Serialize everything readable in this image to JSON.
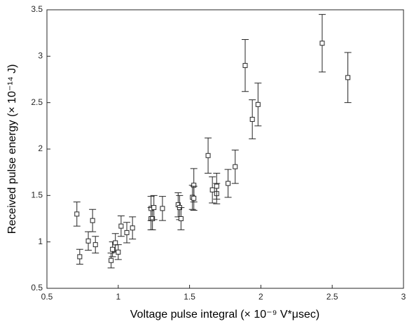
{
  "chart_data": {
    "type": "scatter",
    "xlabel": "Voltage pulse integral (× 10⁻⁹ V*μsec)",
    "ylabel": "Received pulse energy (× 10⁻¹⁴ J)",
    "x": [
      0.71,
      0.73,
      0.79,
      0.82,
      0.84,
      0.95,
      0.96,
      0.98,
      1.0,
      1.02,
      1.06,
      1.1,
      1.23,
      1.23,
      1.24,
      1.25,
      1.31,
      1.42,
      1.43,
      1.44,
      1.52,
      1.53,
      1.53,
      1.63,
      1.66,
      1.69,
      1.69,
      1.77,
      1.82,
      1.89,
      1.94,
      1.98,
      2.43,
      2.61
    ],
    "values": [
      1.3,
      0.84,
      1.01,
      1.23,
      0.97,
      0.8,
      0.92,
      0.99,
      0.89,
      1.17,
      1.1,
      1.15,
      1.25,
      1.36,
      1.25,
      1.37,
      1.36,
      1.4,
      1.37,
      1.25,
      1.48,
      1.61,
      1.47,
      1.93,
      1.56,
      1.52,
      1.6,
      1.63,
      1.81,
      2.9,
      2.32,
      2.48,
      3.14,
      2.77
    ],
    "errors": [
      0.13,
      0.08,
      0.1,
      0.12,
      0.09,
      0.08,
      0.08,
      0.1,
      0.08,
      0.11,
      0.11,
      0.12,
      0.12,
      0.13,
      0.12,
      0.13,
      0.13,
      0.13,
      0.13,
      0.12,
      0.13,
      0.18,
      0.13,
      0.19,
      0.14,
      0.11,
      0.14,
      0.15,
      0.18,
      0.28,
      0.21,
      0.23,
      0.31,
      0.27
    ],
    "color": "#262626",
    "xlim": [
      0.5,
      3
    ],
    "xticks": [
      0.5,
      1,
      1.5,
      2,
      2.5,
      3
    ],
    "ylim": [
      0.5,
      3.5
    ],
    "yticks": [
      0.5,
      1,
      1.5,
      2,
      2.5,
      3,
      3.5
    ]
  }
}
